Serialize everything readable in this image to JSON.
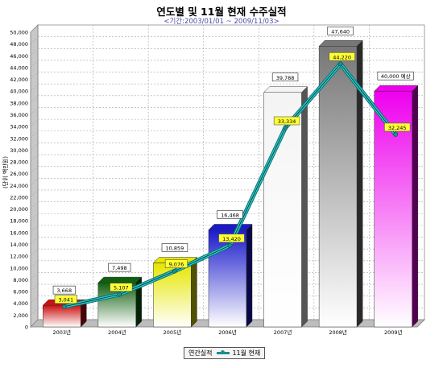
{
  "chart_data": {
    "type": "bar",
    "title": "연도별 및 11월 현재 수주실적",
    "subtitle": "<기간:2003/01/01 ~ 2009/11/03>",
    "ylabel": "(단위 백만원)",
    "xlabel": "",
    "ylim": [
      0,
      50000
    ],
    "yticks": [
      0,
      2000,
      4000,
      6000,
      8000,
      10000,
      12000,
      14000,
      16000,
      18000,
      20000,
      22000,
      24000,
      26000,
      28000,
      30000,
      32000,
      34000,
      36000,
      38000,
      40000,
      42000,
      44000,
      46000,
      48000,
      50000
    ],
    "ytick_labels": [
      "0",
      "2,000",
      "4,000",
      "6,000",
      "8,000",
      "10,000",
      "12,000",
      "14,000",
      "16,000",
      "18,000",
      "20,000",
      "22,000",
      "24,000",
      "26,000",
      "28,000",
      "30,000",
      "32,000",
      "34,000",
      "36,000",
      "38,000",
      "40,000",
      "42,000",
      "44,000",
      "46,000",
      "48,000",
      "50,000"
    ],
    "categories": [
      "2003년",
      "2004년",
      "2005년",
      "2006년",
      "2007년",
      "2008년",
      "2009년"
    ],
    "grid": true,
    "legend_position": "bottom-center",
    "series": [
      {
        "name": "연간실적",
        "kind": "bar",
        "values": [
          3668,
          7498,
          10859,
          16468,
          39788,
          47640,
          40000
        ],
        "labels": [
          "3,668",
          "7,498",
          "10,859",
          "16,468",
          "39,788",
          "47,640",
          "40,000 예상"
        ],
        "colors": [
          "#cc1111",
          "#106010",
          "#e6e600",
          "#1a1acc",
          "#f4f4f4",
          "#777777",
          "#ee00ee"
        ]
      },
      {
        "name": "11월 현재",
        "kind": "line",
        "values": [
          3041,
          5107,
          9076,
          13420,
          33334,
          44220,
          32245
        ],
        "labels": [
          "3,041",
          "5,107",
          "9,076",
          "13,420",
          "33,334",
          "44,220",
          "32,245"
        ],
        "color": "#1a8f8f"
      }
    ]
  }
}
